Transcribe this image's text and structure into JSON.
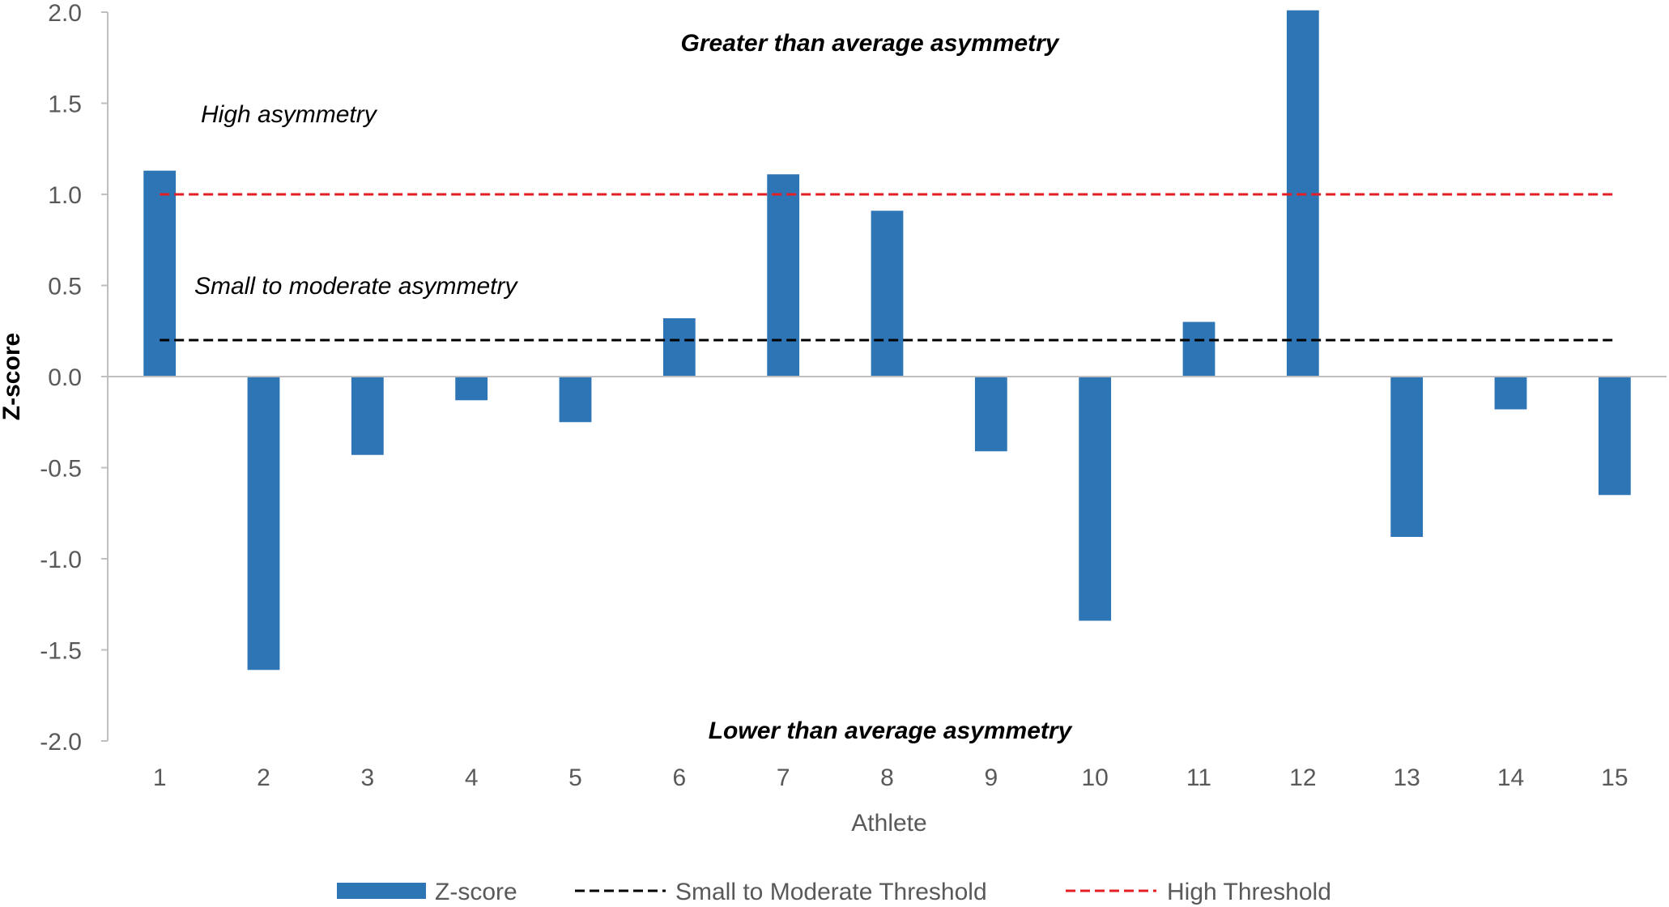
{
  "chart_data": {
    "type": "bar",
    "categories": [
      "1",
      "2",
      "3",
      "4",
      "5",
      "6",
      "7",
      "8",
      "9",
      "10",
      "11",
      "12",
      "13",
      "14",
      "15"
    ],
    "series": [
      {
        "name": "Z-score",
        "type": "bar",
        "color": "#2E75B6",
        "values": [
          1.13,
          -1.61,
          -0.43,
          -0.13,
          -0.25,
          0.32,
          1.11,
          0.91,
          -0.41,
          -1.34,
          0.3,
          2.01,
          -0.88,
          -0.18,
          -0.65
        ]
      },
      {
        "name": "Small to Moderate Threshold",
        "type": "line",
        "style": "dashed",
        "color": "#000000",
        "value": 0.2
      },
      {
        "name": "High Threshold",
        "type": "line",
        "style": "dashed",
        "color": "#E31E24",
        "value": 1.0
      }
    ],
    "xlabel": "Athlete",
    "ylabel": "Z-score",
    "ylim": [
      -2.0,
      2.0
    ],
    "yticks": [
      "2.0",
      "1.5",
      "1.0",
      "0.5",
      "0.0",
      "-0.5",
      "-1.0",
      "-1.5",
      "-2.0"
    ],
    "annotations": {
      "greater": "Greater than average asymmetry",
      "high": "High asymmetry",
      "small_moderate": "Small to moderate asymmetry",
      "lower": "Lower than average asymmetry"
    },
    "legend_position": "bottom",
    "grid": false
  }
}
